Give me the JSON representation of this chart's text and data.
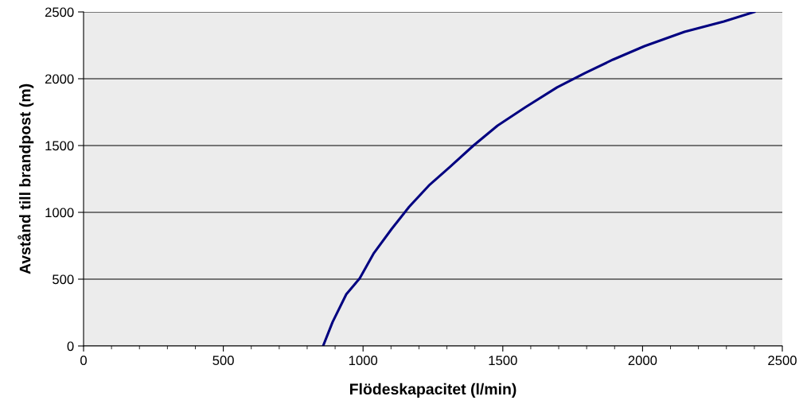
{
  "chart_data": {
    "type": "line",
    "xlabel": "Flödeskapacitet (l/min)",
    "ylabel": "Avstånd till brandpost (m)",
    "series": [
      {
        "color": "#000080",
        "x": [
          857,
          891,
          940,
          988,
          1039,
          1102,
          1165,
          1239,
          1310,
          1395,
          1481,
          1580,
          1694,
          1794,
          1894,
          2007,
          2150,
          2291,
          2400
        ],
        "values": [
          0,
          179,
          387,
          506,
          696,
          875,
          1042,
          1208,
          1339,
          1500,
          1649,
          1786,
          1935,
          2042,
          2143,
          2244,
          2351,
          2429,
          2500
        ]
      }
    ],
    "xlim": [
      0,
      2500
    ],
    "xticks": [
      0,
      500,
      1000,
      1500,
      2000,
      2500
    ],
    "ylim": [
      0,
      2500
    ],
    "yticks": [
      0,
      500,
      1000,
      1500,
      2000,
      2500
    ],
    "grid": "y",
    "legend": false,
    "marker": "none",
    "line_style": "solid"
  }
}
